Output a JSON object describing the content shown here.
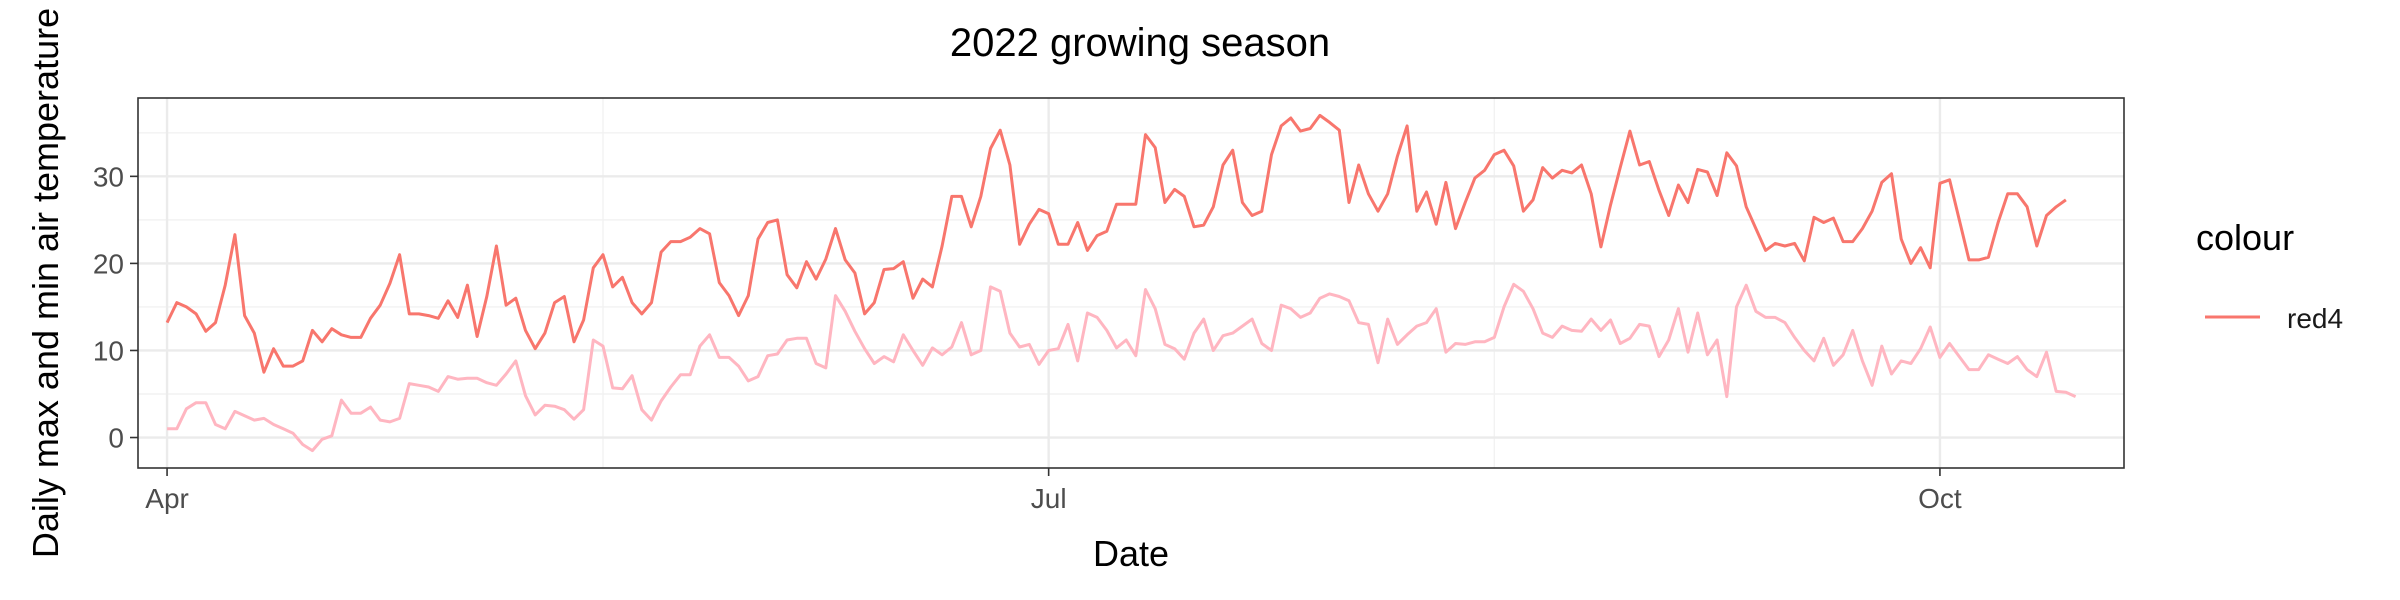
{
  "chart_data": {
    "type": "line",
    "title": "2022 growing season",
    "xlabel": "Date",
    "ylabel": "Daily max and min air temperature",
    "xlim": [
      "2022-03-29",
      "2022-10-20"
    ],
    "ylim": [
      -3.5,
      39
    ],
    "x_ticks": [
      {
        "date": "2022-04-01",
        "label": "Apr"
      },
      {
        "date": "2022-07-01",
        "label": "Jul"
      },
      {
        "date": "2022-10-01",
        "label": "Oct"
      }
    ],
    "x_minor_ticks": [
      "2022-05-16",
      "2022-08-16"
    ],
    "y_ticks": [
      0,
      10,
      20,
      30
    ],
    "grid": true,
    "legend": {
      "title": "colour",
      "position": "right",
      "entries": [
        {
          "label": "red4",
          "color": "#f8766d"
        }
      ]
    },
    "start_date": "2022-04-01",
    "series": [
      {
        "name": "red4",
        "color": "#f8766d",
        "values": [
          13.2,
          15.5,
          15.0,
          14.2,
          12.2,
          13.2,
          17.5,
          23.3,
          14.0,
          12.0,
          7.5,
          10.2,
          8.2,
          8.2,
          8.8,
          12.3,
          11.0,
          12.5,
          11.8,
          11.5,
          11.5,
          13.7,
          15.2,
          17.7,
          21.0,
          14.2,
          14.2,
          14.0,
          13.7,
          15.7,
          13.8,
          17.5,
          11.6,
          16.2,
          22.0,
          15.2,
          16.0,
          12.3,
          10.2,
          12.0,
          15.5,
          16.2,
          11.0,
          13.5,
          19.5,
          21.0,
          17.3,
          18.4,
          15.5,
          14.2,
          15.5,
          21.3,
          22.5,
          22.5,
          23.0,
          24.0,
          23.4,
          17.8,
          16.3,
          14.0,
          16.3,
          22.8,
          24.7,
          25.0,
          18.7,
          17.2,
          20.2,
          18.2,
          20.5,
          24.0,
          20.4,
          18.9,
          14.2,
          15.5,
          19.3,
          19.4,
          20.2,
          16.0,
          18.2,
          17.3,
          22.0,
          27.7,
          27.7,
          24.2,
          27.7,
          33.2,
          35.3,
          31.3,
          22.2,
          24.5,
          26.2,
          25.7,
          22.2,
          22.2,
          24.7,
          21.5,
          23.2,
          23.7,
          26.8,
          26.8,
          26.8,
          34.8,
          33.3,
          27.0,
          28.5,
          27.7,
          24.2,
          24.4,
          26.5,
          31.3,
          33.0,
          27.0,
          25.5,
          26.0,
          32.5,
          35.8,
          36.7,
          35.2,
          35.5,
          37.0,
          36.2,
          35.3,
          27.0,
          31.3,
          28.0,
          26.0,
          28.0,
          32.3,
          35.8,
          26.0,
          28.2,
          24.5,
          29.3,
          24.0,
          27.0,
          29.8,
          30.7,
          32.5,
          33.0,
          31.2,
          26.0,
          27.3,
          31.0,
          29.8,
          30.7,
          30.4,
          31.3,
          28.0,
          21.9,
          26.7,
          31.0,
          35.2,
          31.3,
          31.7,
          28.4,
          25.5,
          29.0,
          27.0,
          30.8,
          30.5,
          27.8,
          32.7,
          31.2,
          26.5,
          24.0,
          21.5,
          22.3,
          22.0,
          22.3,
          20.3,
          25.3,
          24.7,
          25.2,
          22.5,
          22.5,
          24.0,
          26.0,
          29.3,
          30.3,
          22.8,
          20.0,
          21.8,
          19.5,
          29.2,
          29.6,
          25.0,
          20.4,
          20.4,
          20.7,
          24.7,
          28.0,
          28.0,
          26.5,
          22.0,
          25.5,
          26.5,
          27.3
        ]
      },
      {
        "name": "",
        "color": "#ffb6c1",
        "values": [
          1.0,
          1.0,
          3.3,
          4.0,
          4.0,
          1.5,
          1.0,
          3.0,
          2.5,
          2.0,
          2.2,
          1.5,
          1.0,
          0.5,
          -0.8,
          -1.5,
          -0.2,
          0.2,
          4.3,
          2.8,
          2.8,
          3.5,
          2.0,
          1.8,
          2.2,
          6.2,
          6.0,
          5.8,
          5.3,
          7.0,
          6.7,
          6.8,
          6.8,
          6.3,
          6.0,
          7.3,
          8.8,
          4.8,
          2.6,
          3.7,
          3.6,
          3.2,
          2.1,
          3.2,
          11.2,
          10.5,
          5.7,
          5.6,
          7.1,
          3.2,
          2.0,
          4.2,
          5.8,
          7.2,
          7.2,
          10.5,
          11.8,
          9.2,
          9.2,
          8.2,
          6.5,
          7.0,
          9.4,
          9.6,
          11.2,
          11.4,
          11.4,
          8.5,
          8.0,
          16.3,
          14.5,
          12.2,
          10.2,
          8.5,
          9.3,
          8.7,
          11.8,
          10.0,
          8.3,
          10.3,
          9.5,
          10.4,
          13.2,
          9.5,
          10.0,
          17.3,
          16.8,
          12.0,
          10.4,
          10.7,
          8.4,
          10.0,
          10.2,
          13.0,
          8.8,
          14.3,
          13.8,
          12.3,
          10.3,
          11.2,
          9.4,
          17.0,
          14.8,
          10.7,
          10.2,
          9.0,
          12.0,
          13.6,
          10.0,
          11.7,
          12.0,
          12.8,
          13.6,
          10.8,
          10.0,
          15.2,
          14.8,
          13.8,
          14.3,
          16.0,
          16.5,
          16.2,
          15.7,
          13.2,
          13.0,
          8.6,
          13.6,
          10.7,
          11.8,
          12.8,
          13.2,
          14.8,
          9.8,
          10.8,
          10.7,
          11.0,
          11.0,
          11.5,
          15.0,
          17.6,
          16.8,
          14.8,
          12.0,
          11.5,
          12.8,
          12.3,
          12.2,
          13.6,
          12.3,
          13.5,
          10.8,
          11.4,
          13.0,
          12.8,
          9.3,
          11.2,
          14.8,
          9.8,
          14.3,
          9.5,
          11.2,
          4.7,
          15.0,
          17.5,
          14.5,
          13.8,
          13.8,
          13.2,
          11.5,
          10.0,
          8.8,
          11.4,
          8.3,
          9.5,
          12.3,
          8.8,
          6.0,
          10.5,
          7.3,
          8.8,
          8.5,
          10.2,
          12.7,
          9.2,
          10.8,
          9.3,
          7.8,
          7.8,
          9.5,
          9.0,
          8.5,
          9.3,
          7.8,
          7.0,
          9.8,
          5.3,
          5.2,
          4.7
        ]
      }
    ]
  }
}
